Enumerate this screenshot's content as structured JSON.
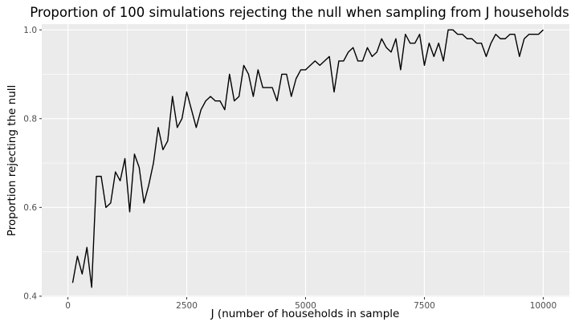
{
  "chart_data": {
    "type": "line",
    "title": "Proportion of 100 simulations rejecting the null when sampling from J households",
    "xlabel": "J (number of households in sample",
    "ylabel": "Proportion rejecting the null",
    "xlim": [
      -550,
      10550
    ],
    "ylim": [
      0.398,
      1.013
    ],
    "xticks": [
      0,
      2500,
      5000,
      7500,
      10000
    ],
    "xtick_labels": [
      "0",
      "2500",
      "5000",
      "7500",
      "10000"
    ],
    "yticks": [
      0.4,
      0.6,
      0.8,
      1.0
    ],
    "ytick_labels": [
      "0.4",
      "0.6",
      "0.8",
      "1.0"
    ],
    "grid": true,
    "legend": "none",
    "colors": {
      "panel": "#ebebeb",
      "grid": "#ffffff",
      "line": "#000000",
      "tick": "#333333"
    },
    "series": [
      {
        "x": [
          100,
          200,
          300,
          400,
          500,
          600,
          700,
          800,
          900,
          1000,
          1100,
          1200,
          1300,
          1400,
          1500,
          1600,
          1700,
          1800,
          1900,
          2000,
          2100,
          2200,
          2300,
          2400,
          2500,
          2600,
          2700,
          2800,
          2900,
          3000,
          3100,
          3200,
          3300,
          3400,
          3500,
          3600,
          3700,
          3800,
          3900,
          4000,
          4100,
          4200,
          4300,
          4400,
          4500,
          4600,
          4700,
          4800,
          4900,
          5000,
          5100,
          5200,
          5300,
          5400,
          5500,
          5600,
          5700,
          5800,
          5900,
          6000,
          6100,
          6200,
          6300,
          6400,
          6500,
          6600,
          6700,
          6800,
          6900,
          7000,
          7100,
          7200,
          7300,
          7400,
          7500,
          7600,
          7700,
          7800,
          7900,
          8000,
          8100,
          8200,
          8300,
          8400,
          8500,
          8600,
          8700,
          8800,
          8900,
          9000,
          9100,
          9200,
          9300,
          9400,
          9500,
          9600,
          9700,
          9800,
          9900,
          10000
        ],
        "values": [
          0.43,
          0.49,
          0.45,
          0.51,
          0.42,
          0.67,
          0.67,
          0.6,
          0.61,
          0.68,
          0.66,
          0.71,
          0.59,
          0.72,
          0.69,
          0.61,
          0.65,
          0.7,
          0.78,
          0.73,
          0.75,
          0.85,
          0.78,
          0.8,
          0.86,
          0.82,
          0.78,
          0.82,
          0.84,
          0.85,
          0.84,
          0.84,
          0.82,
          0.9,
          0.84,
          0.85,
          0.92,
          0.9,
          0.85,
          0.91,
          0.87,
          0.87,
          0.87,
          0.84,
          0.9,
          0.9,
          0.85,
          0.89,
          0.91,
          0.91,
          0.92,
          0.93,
          0.92,
          0.93,
          0.94,
          0.86,
          0.93,
          0.93,
          0.95,
          0.96,
          0.93,
          0.93,
          0.96,
          0.94,
          0.95,
          0.98,
          0.96,
          0.95,
          0.98,
          0.91,
          0.99,
          0.97,
          0.97,
          0.99,
          0.92,
          0.97,
          0.94,
          0.97,
          0.93,
          1.0,
          1.0,
          0.99,
          0.99,
          0.98,
          0.98,
          0.97,
          0.97,
          0.94,
          0.97,
          0.99,
          0.98,
          0.98,
          0.99,
          0.99,
          0.94,
          0.98,
          0.99,
          0.99,
          0.99,
          1.0
        ]
      }
    ]
  }
}
